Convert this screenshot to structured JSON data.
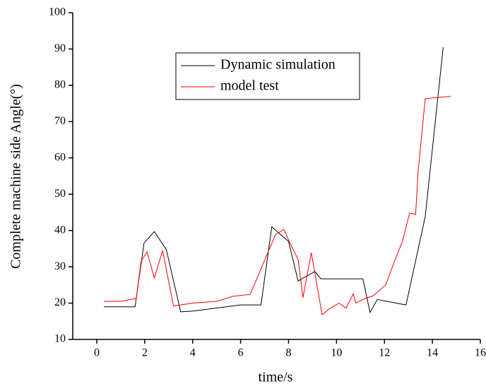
{
  "chart_data": {
    "type": "line",
    "x_label": "time/s",
    "y_label": "Complete machine side Angle(°)",
    "xlim": [
      -1,
      16
    ],
    "xticks": [
      0,
      2,
      4,
      6,
      8,
      10,
      12,
      14,
      16
    ],
    "ylim": [
      10,
      100
    ],
    "yticks": [
      10,
      20,
      30,
      40,
      50,
      60,
      70,
      80,
      90,
      100
    ],
    "series": [
      {
        "name": "Dynamic simulation",
        "color": "#000000",
        "x": [
          0.3,
          1.6,
          1.97,
          2.4,
          2.9,
          3.5,
          4,
          6,
          6.85,
          7.3,
          8,
          8.4,
          8.9,
          9.1,
          9.35,
          11.1,
          11.4,
          11.7,
          12.9,
          13.7,
          14.45
        ],
        "values": [
          19,
          19,
          36.5,
          39.7,
          34.8,
          17.6,
          17.8,
          19.5,
          19.5,
          41,
          37,
          26.1,
          28,
          28.7,
          26.7,
          26.7,
          17.4,
          21,
          19.5,
          43.8,
          90.5
        ]
      },
      {
        "name": "model test",
        "color": "#ff0000",
        "x": [
          0.3,
          1,
          1.65,
          1.85,
          2.1,
          2.4,
          2.75,
          3.2,
          4,
          5,
          5.7,
          6.4,
          6.95,
          7.45,
          7.8,
          8.1,
          8.4,
          8.6,
          8.95,
          9.4,
          9.7,
          10.1,
          10.4,
          10.7,
          10.8,
          11.2,
          11.5,
          12.05,
          12.4,
          12.75,
          13.05,
          13.3,
          13.4,
          13.7,
          14.3,
          14.75
        ],
        "values": [
          20.5,
          20.5,
          21.3,
          31.6,
          34.1,
          26.9,
          34.5,
          19.2,
          20,
          20.5,
          21.9,
          22.4,
          31,
          38.8,
          40.3,
          36,
          32,
          21.5,
          33.9,
          16.8,
          18.4,
          20,
          18.6,
          22.6,
          20,
          21.3,
          21.9,
          25,
          31.2,
          37,
          44.8,
          44.4,
          55.9,
          76.3,
          76.7,
          77
        ]
      }
    ]
  }
}
